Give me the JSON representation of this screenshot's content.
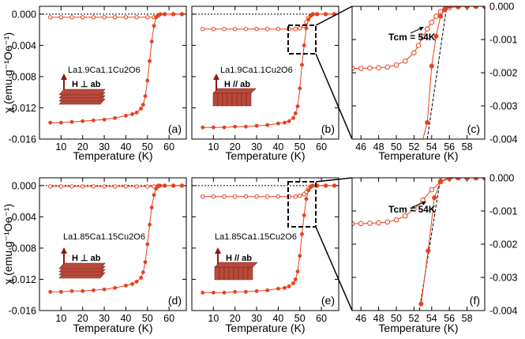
{
  "colors": {
    "series": "#e8401c",
    "frame": "#000000",
    "zoom_box": "#000000"
  },
  "axis_labels": {
    "ylabel": "χ (emu g⁻¹Oe⁻¹)",
    "xlabel": "Temperature (K)"
  },
  "chart_data": [
    {
      "id": "a",
      "type": "scatter",
      "panel_label": "(a)",
      "compound": "La1.9Ca1.1Cu2O6",
      "field": "H ⊥ ab",
      "xlabel": "Temperature (K)",
      "ylabel": "χ (emu g⁻¹Oe⁻¹)",
      "xlim": [
        0,
        68
      ],
      "ylim": [
        -0.016,
        0.001
      ],
      "xticks": [
        10,
        20,
        30,
        40,
        50,
        60
      ],
      "xtick_labels": [
        "10",
        "20",
        "30",
        "40",
        "50",
        "60"
      ],
      "yticks": [
        0.0,
        -0.004,
        -0.008,
        -0.012,
        -0.016
      ],
      "ytick_labels": [
        "0.000",
        "-0.004",
        "-0.008",
        "-0.012",
        "-0.016"
      ],
      "series": [
        {
          "name": "FC",
          "marker": "open",
          "x": [
            5,
            10,
            15,
            20,
            25,
            30,
            35,
            40,
            45,
            50,
            53,
            55,
            58,
            62,
            66
          ],
          "y": [
            -0.0004,
            -0.0004,
            -0.0004,
            -0.0004,
            -0.0004,
            -0.0004,
            -0.0004,
            -0.0004,
            -0.0004,
            -0.0004,
            -0.0004,
            -0.0002,
            0.0,
            0.0,
            0.0
          ]
        },
        {
          "name": "ZFC",
          "marker": "filled",
          "x": [
            5,
            10,
            15,
            20,
            25,
            30,
            35,
            40,
            43,
            45,
            47,
            48,
            49,
            50,
            51,
            52,
            53,
            54,
            55,
            56,
            58,
            62,
            66
          ],
          "y": [
            -0.0139,
            -0.0139,
            -0.0138,
            -0.0137,
            -0.0136,
            -0.0135,
            -0.0133,
            -0.013,
            -0.0128,
            -0.0126,
            -0.0121,
            -0.0116,
            -0.0105,
            -0.0085,
            -0.006,
            -0.0035,
            -0.0015,
            -0.0004,
            -0.0001,
            0.0,
            0.0,
            0.0,
            0.0
          ]
        }
      ]
    },
    {
      "id": "b",
      "type": "scatter",
      "panel_label": "(b)",
      "compound": "La1.9Ca1.1Cu2O6",
      "field": "H // ab",
      "xlabel": "Temperature (K)",
      "xlim": [
        0,
        68
      ],
      "ylim": [
        -0.016,
        0.001
      ],
      "xticks": [
        10,
        20,
        30,
        40,
        50,
        60
      ],
      "xtick_labels": [
        "10",
        "20",
        "30",
        "40",
        "50",
        "60"
      ],
      "yticks": [
        0.0,
        -0.004,
        -0.008,
        -0.012,
        -0.016
      ],
      "series": [
        {
          "name": "FC",
          "marker": "open",
          "x": [
            5,
            10,
            15,
            20,
            25,
            30,
            35,
            40,
            45,
            48,
            50,
            52,
            53,
            54,
            55,
            56,
            58,
            62,
            66
          ],
          "y": [
            -0.0019,
            -0.0019,
            -0.0019,
            -0.0019,
            -0.0019,
            -0.0019,
            -0.0019,
            -0.0019,
            -0.0019,
            -0.0019,
            -0.0018,
            -0.0015,
            -0.001,
            -0.0005,
            -0.0002,
            0.0,
            0.0,
            0.0,
            0.0
          ]
        },
        {
          "name": "ZFC",
          "marker": "filled",
          "x": [
            5,
            10,
            15,
            20,
            25,
            30,
            35,
            40,
            43,
            45,
            47,
            48,
            49,
            50,
            51,
            52,
            53,
            54,
            55,
            56,
            58,
            62,
            66
          ],
          "y": [
            -0.0145,
            -0.0145,
            -0.0145,
            -0.0144,
            -0.0144,
            -0.0143,
            -0.0142,
            -0.014,
            -0.0139,
            -0.0137,
            -0.0133,
            -0.0127,
            -0.0118,
            -0.0095,
            -0.0065,
            -0.004,
            -0.0018,
            -0.0007,
            -0.0002,
            0.0,
            0.0,
            0.0,
            0.0
          ]
        }
      ]
    },
    {
      "id": "c",
      "type": "line",
      "panel_label": "(c)",
      "zoom_of": "b",
      "annotation": "Tcm = 54K",
      "xlabel": "Temperature (K)",
      "xlim": [
        45,
        60
      ],
      "ylim": [
        -0.004,
        0.0
      ],
      "xticks": [
        46,
        48,
        50,
        52,
        54,
        56,
        58
      ],
      "xtick_labels": [
        "46",
        "48",
        "50",
        "52",
        "54",
        "56",
        "58"
      ],
      "yticks": [
        0.0,
        -0.001,
        -0.002,
        -0.003,
        -0.004
      ],
      "ytick_labels": [
        "0.000",
        "-0.001",
        "-0.002",
        "-0.003",
        "-0.004"
      ],
      "tangent_x": [
        53.5,
        55.7
      ],
      "series": [
        {
          "name": "FC",
          "marker": "open",
          "x": [
            45,
            46,
            47,
            48,
            49,
            50,
            51,
            52,
            52.5,
            53,
            53.5,
            54,
            54.5,
            55,
            55.5,
            56,
            57,
            58,
            59,
            60
          ],
          "y": [
            -0.00187,
            -0.00187,
            -0.00186,
            -0.00185,
            -0.00183,
            -0.00177,
            -0.00165,
            -0.0014,
            -0.00118,
            -0.00092,
            -0.00068,
            -0.00048,
            -0.0003,
            -0.00016,
            -8e-05,
            -4e-05,
            -1e-05,
            0.0,
            0.0,
            0.0
          ]
        },
        {
          "name": "ZFC",
          "marker": "filled",
          "x": [
            52.5,
            53.5,
            54,
            54.5,
            55,
            55.5,
            56,
            57,
            58,
            59,
            60
          ],
          "y": [
            -0.0045,
            -0.0035,
            -0.0018,
            -0.0009,
            -0.0003,
            -0.0001,
            0.0,
            0.0,
            0.0,
            0.0,
            0.0
          ]
        }
      ]
    },
    {
      "id": "d",
      "type": "scatter",
      "panel_label": "(d)",
      "compound": "La1.85Ca1.15Cu2O6",
      "field": "H ⊥ ab",
      "xlabel": "Temperature (K)",
      "ylabel": "χ (emu g⁻¹Oe⁻¹)",
      "xlim": [
        0,
        68
      ],
      "ylim": [
        -0.016,
        0.001
      ],
      "xticks": [
        10,
        20,
        30,
        40,
        50,
        60
      ],
      "xtick_labels": [
        "10",
        "20",
        "30",
        "40",
        "50",
        "60"
      ],
      "yticks": [
        0.0,
        -0.004,
        -0.008,
        -0.012,
        -0.016
      ],
      "ytick_labels": [
        "0.000",
        "-0.004",
        "-0.008",
        "-0.012",
        "-0.016"
      ],
      "series": [
        {
          "name": "FC",
          "marker": "open",
          "x": [
            5,
            10,
            15,
            20,
            25,
            30,
            35,
            40,
            45,
            50,
            53,
            55,
            58,
            62,
            66
          ],
          "y": [
            -0.0001,
            -0.0001,
            -0.0001,
            -0.0001,
            -0.0001,
            -0.0001,
            -0.0001,
            -0.0001,
            -0.0001,
            -0.0001,
            -0.0001,
            0.0,
            0.0,
            0.0,
            0.0
          ]
        },
        {
          "name": "ZFC",
          "marker": "filled",
          "x": [
            5,
            10,
            15,
            20,
            25,
            30,
            35,
            40,
            43,
            45,
            47,
            48,
            49,
            50,
            51,
            52,
            53,
            54,
            55,
            56,
            58,
            62,
            66
          ],
          "y": [
            -0.0136,
            -0.0136,
            -0.0135,
            -0.0135,
            -0.0134,
            -0.0133,
            -0.0131,
            -0.0128,
            -0.0126,
            -0.0123,
            -0.0118,
            -0.0111,
            -0.0098,
            -0.0075,
            -0.005,
            -0.0028,
            -0.0012,
            -0.0004,
            -0.0001,
            0.0,
            0.0,
            0.0,
            0.0
          ]
        }
      ]
    },
    {
      "id": "e",
      "type": "scatter",
      "panel_label": "(e)",
      "compound": "La1.85Ca1.15Cu2O6",
      "field": "H // ab",
      "xlabel": "Temperature (K)",
      "xlim": [
        0,
        68
      ],
      "ylim": [
        -0.016,
        0.001
      ],
      "xticks": [
        10,
        20,
        30,
        40,
        50,
        60
      ],
      "xtick_labels": [
        "10",
        "20",
        "30",
        "40",
        "50",
        "60"
      ],
      "yticks": [
        0.0,
        -0.004,
        -0.008,
        -0.012,
        -0.016
      ],
      "series": [
        {
          "name": "FC",
          "marker": "open",
          "x": [
            5,
            10,
            15,
            20,
            25,
            30,
            35,
            40,
            45,
            48,
            50,
            52,
            53,
            54,
            55,
            56,
            58,
            62,
            66
          ],
          "y": [
            -0.0014,
            -0.0014,
            -0.0014,
            -0.0014,
            -0.0014,
            -0.0014,
            -0.0014,
            -0.0014,
            -0.0014,
            -0.0014,
            -0.0013,
            -0.0011,
            -0.0008,
            -0.0004,
            -0.0001,
            0.0,
            0.0,
            0.0,
            0.0
          ]
        },
        {
          "name": "ZFC",
          "marker": "filled",
          "x": [
            5,
            10,
            15,
            20,
            25,
            30,
            35,
            40,
            43,
            45,
            47,
            48,
            49,
            50,
            51,
            52,
            53,
            54,
            55,
            56,
            58,
            62,
            66
          ],
          "y": [
            -0.0137,
            -0.0137,
            -0.0137,
            -0.0136,
            -0.0136,
            -0.0135,
            -0.0134,
            -0.0132,
            -0.0131,
            -0.0129,
            -0.0125,
            -0.012,
            -0.011,
            -0.009,
            -0.0062,
            -0.0038,
            -0.0017,
            -0.0006,
            -0.0002,
            0.0,
            0.0,
            0.0,
            0.0
          ]
        }
      ]
    },
    {
      "id": "f",
      "type": "line",
      "panel_label": "(f)",
      "zoom_of": "e",
      "annotation": "Tcm = 54K",
      "xlabel": "Temperature (K)",
      "xlim": [
        45,
        60
      ],
      "ylim": [
        -0.004,
        0.0
      ],
      "xticks": [
        46,
        48,
        50,
        52,
        54,
        56,
        58
      ],
      "xtick_labels": [
        "46",
        "48",
        "50",
        "52",
        "54",
        "56",
        "58"
      ],
      "yticks": [
        0.0,
        -0.001,
        -0.002,
        -0.003,
        -0.004
      ],
      "ytick_labels": [
        "0.000",
        "-0.001",
        "-0.002",
        "-0.003",
        "-0.004"
      ],
      "tangent_x": [
        52.6,
        55
      ],
      "series": [
        {
          "name": "FC",
          "marker": "open",
          "x": [
            45,
            46,
            47,
            48,
            49,
            50,
            51,
            52,
            53,
            54,
            55,
            56,
            57,
            58,
            59,
            60
          ],
          "y": [
            -0.00138,
            -0.00138,
            -0.00137,
            -0.00136,
            -0.00133,
            -0.00127,
            -0.00115,
            -0.00095,
            -0.00067,
            -0.00036,
            -0.00012,
            -2e-05,
            0.0,
            0.0,
            0.0,
            0.0
          ]
        },
        {
          "name": "ZFC",
          "marker": "filled",
          "x": [
            52.8,
            53.6,
            54.3,
            55,
            56,
            57,
            58,
            59,
            60
          ],
          "y": [
            -0.0038,
            -0.0022,
            -0.0006,
            -0.0001,
            0.0,
            0.0,
            0.0,
            0.0,
            0.0
          ]
        }
      ]
    }
  ]
}
